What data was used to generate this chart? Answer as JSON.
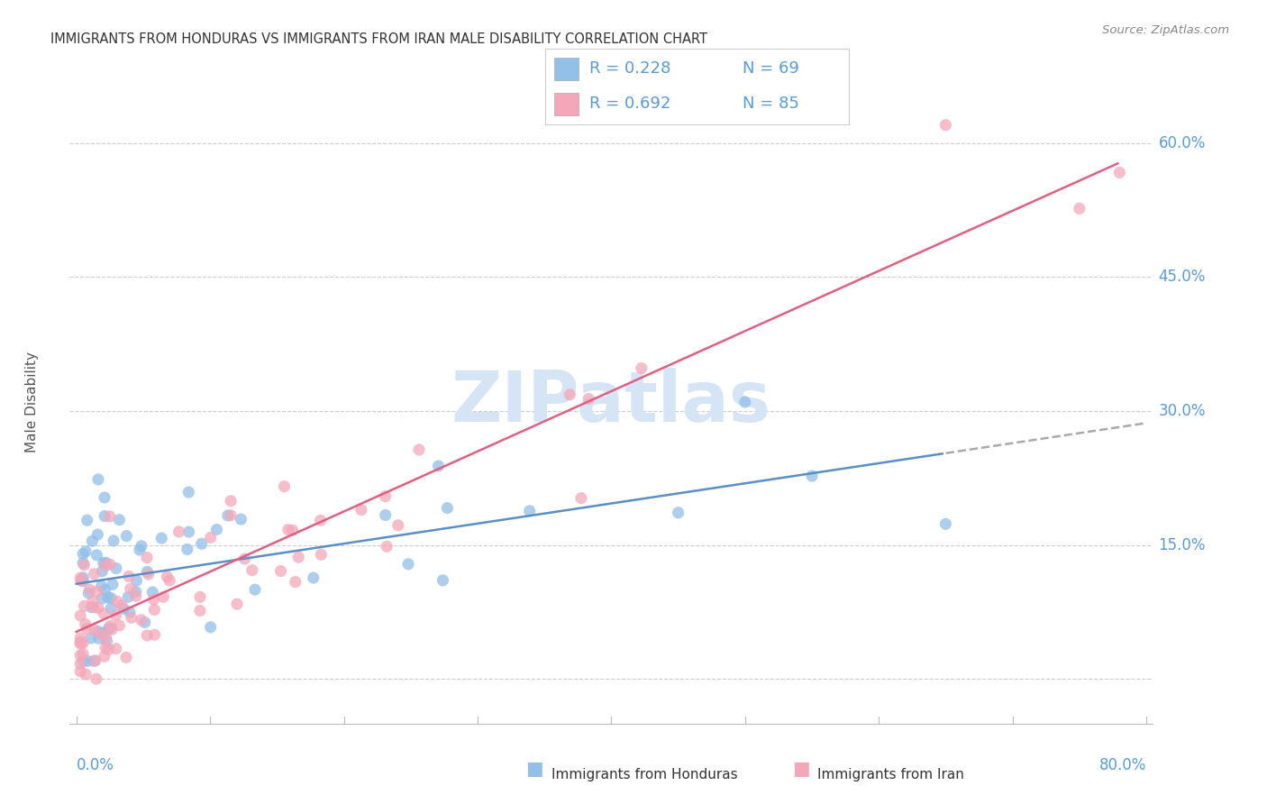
{
  "title": "IMMIGRANTS FROM HONDURAS VS IMMIGRANTS FROM IRAN MALE DISABILITY CORRELATION CHART",
  "source": "Source: ZipAtlas.com",
  "ylabel": "Male Disability",
  "xlim": [
    0.0,
    0.8
  ],
  "ylim": [
    -0.05,
    0.67
  ],
  "ytick_vals": [
    0.0,
    0.15,
    0.3,
    0.45,
    0.6
  ],
  "ytick_labels": [
    "",
    "15.0%",
    "30.0%",
    "45.0%",
    "60.0%"
  ],
  "xtick_label_left": "0.0%",
  "xtick_label_right": "80.0%",
  "legend_honduras_r": "R = 0.228",
  "legend_honduras_n": "N = 69",
  "legend_iran_r": "R = 0.692",
  "legend_iran_n": "N = 85",
  "honduras_color": "#92c0e8",
  "iran_color": "#f4a7b9",
  "honduras_line_color": "#5a8fc8",
  "iran_line_color": "#e06080",
  "watermark": "ZIPatlas",
  "watermark_color": "#d5e5f5",
  "background_color": "#ffffff",
  "grid_color": "#cccccc",
  "title_color": "#333333",
  "axis_label_color": "#5b9bd5",
  "legend_text_color": "#5b9bd5",
  "legend_border_color": "#cccccc"
}
